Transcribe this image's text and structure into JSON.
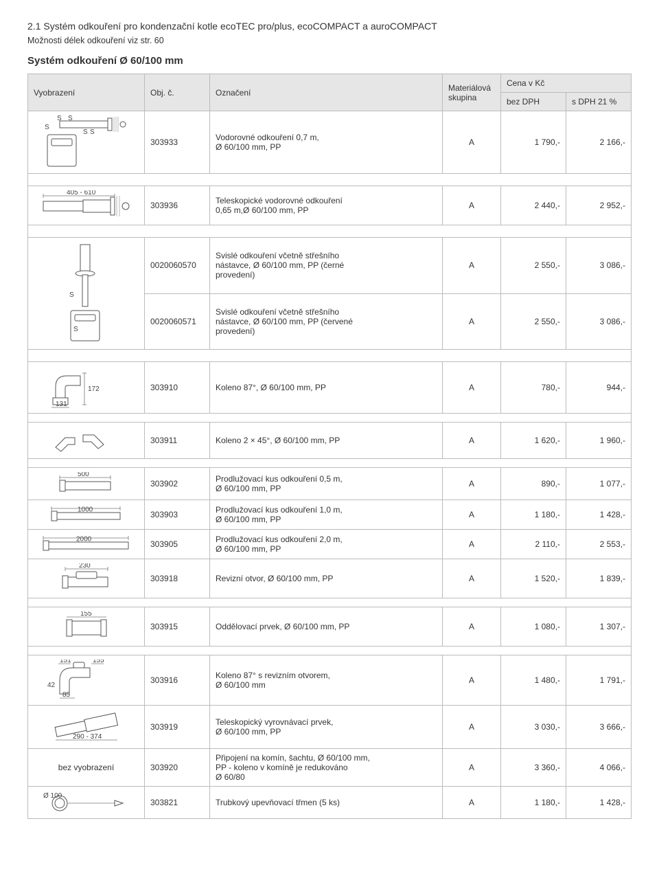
{
  "header": {
    "section_title": "2.1   Systém odkouření pro kondenzační kotle ecoTEC pro/plus, ecoCOMPACT a auroCOMPACT",
    "subtitle": "Možnosti délek odkouření viz str. 60",
    "system_title": "Systém odkouření Ø 60/100 mm"
  },
  "columns": {
    "img": "Vyobrazení",
    "code": "Obj. č.",
    "desc": "Označení",
    "mat": "Materiálová skupina",
    "price_group": "Cena v Kč",
    "p_no_vat": "bez DPH",
    "p_vat": "s DPH 21 %"
  },
  "novis_label": "bez vyobrazení",
  "rows": [
    {
      "code": "303933",
      "desc": "Vodorovné odkouření 0,7 m,\nØ 60/100 mm, PP",
      "mat": "A",
      "p1": "1 790,-",
      "p2": "2 166,-"
    },
    {
      "code": "303936",
      "desc": "Teleskopické vodorovné odkouření\n0,65 m,Ø 60/100 mm, PP",
      "mat": "A",
      "p1": "2 440,-",
      "p2": "2 952,-"
    },
    {
      "code": "0020060570",
      "desc": "Svislé odkouření včetně střešního\nnástavce, Ø 60/100 mm, PP (černé\nprovedení)",
      "mat": "A",
      "p1": "2 550,-",
      "p2": "3 086,-"
    },
    {
      "code": "0020060571",
      "desc": "Svislé odkouření včetně střešního\nnástavce, Ø 60/100 mm, PP (červené\nprovedení)",
      "mat": "A",
      "p1": "2 550,-",
      "p2": "3 086,-"
    },
    {
      "code": "303910",
      "desc": "Koleno 87°, Ø 60/100 mm, PP",
      "mat": "A",
      "p1": "780,-",
      "p2": "944,-"
    },
    {
      "code": "303911",
      "desc": "Koleno 2 × 45°, Ø 60/100 mm, PP",
      "mat": "A",
      "p1": "1 620,-",
      "p2": "1 960,-"
    },
    {
      "code": "303902",
      "desc": "Prodlužovací kus odkouření 0,5 m,\nØ 60/100 mm, PP",
      "mat": "A",
      "p1": "890,-",
      "p2": "1 077,-"
    },
    {
      "code": "303903",
      "desc": "Prodlužovací kus odkouření 1,0 m,\nØ 60/100 mm, PP",
      "mat": "A",
      "p1": "1 180,-",
      "p2": "1 428,-"
    },
    {
      "code": "303905",
      "desc": "Prodlužovací kus odkouření 2,0 m,\nØ 60/100 mm, PP",
      "mat": "A",
      "p1": "2 110,-",
      "p2": "2 553,-"
    },
    {
      "code": "303918",
      "desc": "Revizní otvor, Ø 60/100 mm, PP",
      "mat": "A",
      "p1": "1 520,-",
      "p2": "1 839,-"
    },
    {
      "code": "303915",
      "desc": "Oddělovací prvek, Ø 60/100 mm, PP",
      "mat": "A",
      "p1": "1 080,-",
      "p2": "1 307,-"
    },
    {
      "code": "303916",
      "desc": "Koleno 87° s revizním otvorem,\nØ 60/100 mm",
      "mat": "A",
      "p1": "1 480,-",
      "p2": "1 791,-"
    },
    {
      "code": "303919",
      "desc": "Teleskopický vyrovnávací prvek,\nØ 60/100 mm, PP",
      "mat": "A",
      "p1": "3 030,-",
      "p2": "3 666,-"
    },
    {
      "code": "303920",
      "desc": "Připojení na komín, šachtu, Ø 60/100 mm,\nPP - koleno v komíně je redukováno\nØ 60/80",
      "mat": "A",
      "p1": "3 360,-",
      "p2": "4 066,-"
    },
    {
      "code": "303821",
      "desc": "Trubkový upevňovací třmen (5 ks)",
      "mat": "A",
      "p1": "1 180,-",
      "p2": "1 428,-"
    }
  ],
  "dims": {
    "d405_610": "405 - 610",
    "d172": "172",
    "d131": "131",
    "d500": "500",
    "d1000": "1000",
    "d2000": "2000",
    "d230": "230",
    "d155": "155",
    "d151": "151",
    "d42": "42",
    "d85": "85",
    "d290_374": "290 - 374",
    "d100": "Ø 100"
  },
  "style": {
    "header_bg": "#e6e6e6",
    "border": "#bbbbbb",
    "text": "#333333"
  }
}
